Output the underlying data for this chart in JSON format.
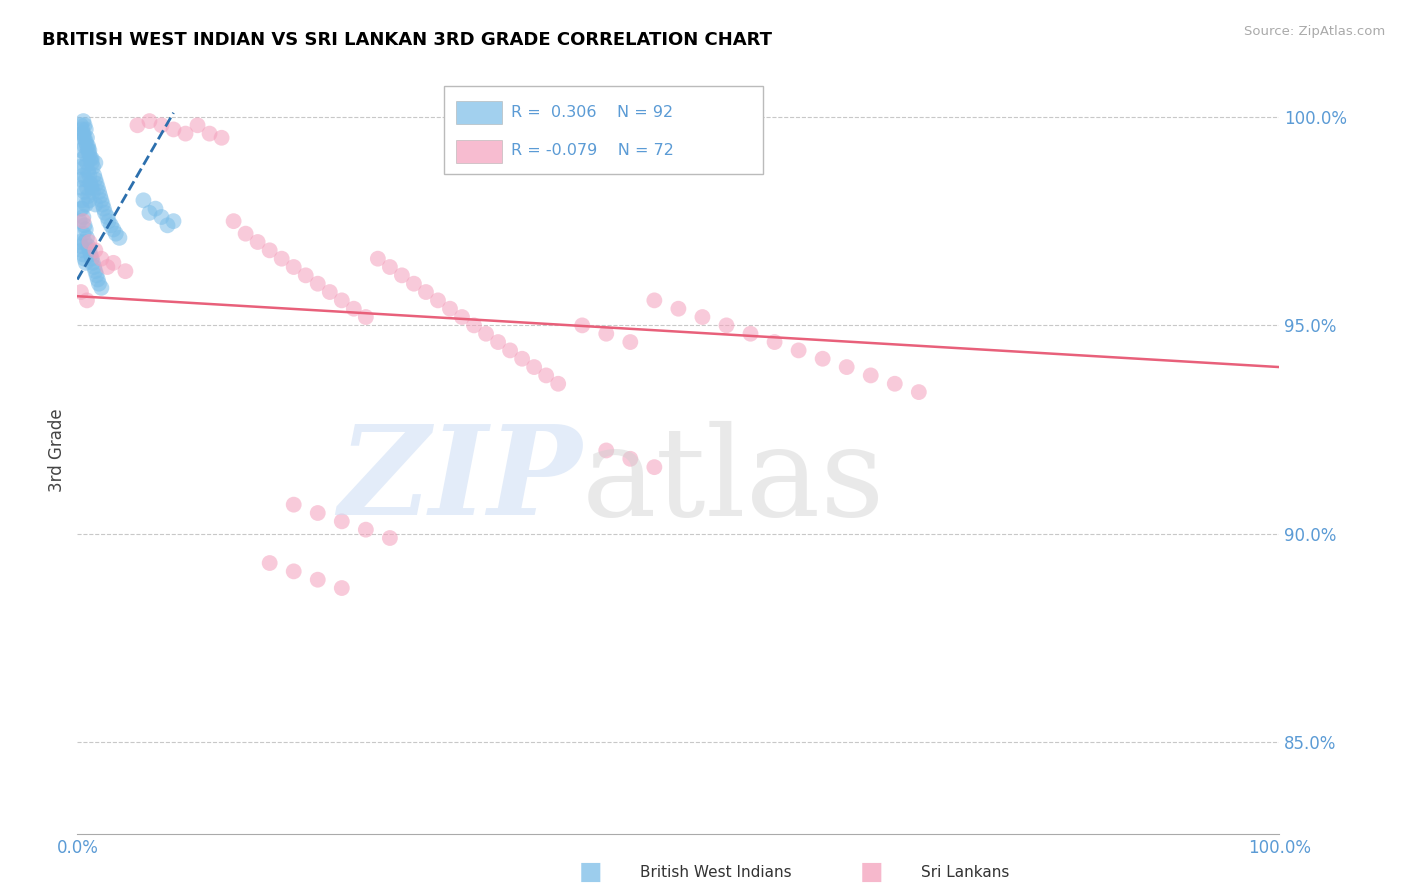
{
  "title": "BRITISH WEST INDIAN VS SRI LANKAN 3RD GRADE CORRELATION CHART",
  "source": "Source: ZipAtlas.com",
  "ylabel": "3rd Grade",
  "x_min": 0.0,
  "x_max": 1.0,
  "y_min": 0.828,
  "y_max": 1.012,
  "yticks": [
    0.85,
    0.9,
    0.95,
    1.0
  ],
  "ytick_labels": [
    "85.0%",
    "90.0%",
    "95.0%",
    "100.0%"
  ],
  "blue_color": "#7bbde8",
  "pink_color": "#f4a0bc",
  "blue_line_color": "#2c6fad",
  "pink_line_color": "#e8607a",
  "title_color": "#000000",
  "axis_color": "#5b9bd5",
  "grid_color": "#c8c8c8",
  "background_color": "#ffffff",
  "legend_R_blue": "0.306",
  "legend_N_blue": "92",
  "legend_R_pink": "-0.079",
  "legend_N_pink": "72",
  "blue_trend_x0": 0.0,
  "blue_trend_x1": 0.08,
  "blue_trend_y0": 0.961,
  "blue_trend_y1": 1.001,
  "pink_trend_x0": 0.0,
  "pink_trend_x1": 1.0,
  "pink_trend_y0": 0.957,
  "pink_trend_y1": 0.94,
  "bwi_x": [
    0.002,
    0.003,
    0.003,
    0.004,
    0.004,
    0.004,
    0.005,
    0.005,
    0.005,
    0.005,
    0.006,
    0.006,
    0.006,
    0.006,
    0.007,
    0.007,
    0.007,
    0.007,
    0.008,
    0.008,
    0.008,
    0.009,
    0.009,
    0.009,
    0.01,
    0.01,
    0.01,
    0.011,
    0.011,
    0.012,
    0.012,
    0.013,
    0.013,
    0.014,
    0.015,
    0.015,
    0.016,
    0.017,
    0.018,
    0.019,
    0.02,
    0.021,
    0.022,
    0.023,
    0.025,
    0.026,
    0.028,
    0.03,
    0.032,
    0.035,
    0.002,
    0.003,
    0.004,
    0.005,
    0.005,
    0.006,
    0.006,
    0.007,
    0.008,
    0.009,
    0.01,
    0.011,
    0.012,
    0.013,
    0.014,
    0.015,
    0.016,
    0.017,
    0.018,
    0.02,
    0.003,
    0.004,
    0.005,
    0.006,
    0.007,
    0.008,
    0.009,
    0.01,
    0.012,
    0.015,
    0.002,
    0.003,
    0.004,
    0.005,
    0.006,
    0.007,
    0.055,
    0.065,
    0.07,
    0.08,
    0.06,
    0.075
  ],
  "bwi_y": [
    0.988,
    0.992,
    0.985,
    0.996,
    0.983,
    0.978,
    0.999,
    0.995,
    0.99,
    0.986,
    0.998,
    0.993,
    0.988,
    0.982,
    0.997,
    0.991,
    0.985,
    0.979,
    0.995,
    0.989,
    0.983,
    0.993,
    0.987,
    0.981,
    0.992,
    0.986,
    0.98,
    0.99,
    0.984,
    0.989,
    0.983,
    0.988,
    0.982,
    0.986,
    0.985,
    0.979,
    0.984,
    0.983,
    0.982,
    0.981,
    0.98,
    0.979,
    0.978,
    0.977,
    0.976,
    0.975,
    0.974,
    0.973,
    0.972,
    0.971,
    0.975,
    0.978,
    0.98,
    0.976,
    0.972,
    0.974,
    0.97,
    0.973,
    0.971,
    0.969,
    0.968,
    0.967,
    0.966,
    0.965,
    0.964,
    0.963,
    0.962,
    0.961,
    0.96,
    0.959,
    0.998,
    0.997,
    0.996,
    0.995,
    0.994,
    0.993,
    0.992,
    0.991,
    0.99,
    0.989,
    0.97,
    0.969,
    0.968,
    0.967,
    0.966,
    0.965,
    0.98,
    0.978,
    0.976,
    0.975,
    0.977,
    0.974
  ],
  "slk_x": [
    0.005,
    0.01,
    0.015,
    0.02,
    0.025,
    0.03,
    0.04,
    0.05,
    0.06,
    0.07,
    0.08,
    0.09,
    0.1,
    0.11,
    0.12,
    0.13,
    0.14,
    0.15,
    0.16,
    0.17,
    0.18,
    0.19,
    0.2,
    0.21,
    0.22,
    0.23,
    0.24,
    0.25,
    0.26,
    0.27,
    0.28,
    0.29,
    0.3,
    0.31,
    0.32,
    0.33,
    0.34,
    0.35,
    0.36,
    0.37,
    0.38,
    0.39,
    0.4,
    0.42,
    0.44,
    0.46,
    0.48,
    0.5,
    0.52,
    0.54,
    0.56,
    0.58,
    0.6,
    0.62,
    0.64,
    0.66,
    0.68,
    0.7,
    0.003,
    0.008,
    0.44,
    0.46,
    0.48,
    0.18,
    0.2,
    0.22,
    0.24,
    0.26,
    0.16,
    0.18,
    0.2,
    0.22
  ],
  "slk_y": [
    0.975,
    0.97,
    0.968,
    0.966,
    0.964,
    0.965,
    0.963,
    0.998,
    0.999,
    0.998,
    0.997,
    0.996,
    0.998,
    0.996,
    0.995,
    0.975,
    0.972,
    0.97,
    0.968,
    0.966,
    0.964,
    0.962,
    0.96,
    0.958,
    0.956,
    0.954,
    0.952,
    0.966,
    0.964,
    0.962,
    0.96,
    0.958,
    0.956,
    0.954,
    0.952,
    0.95,
    0.948,
    0.946,
    0.944,
    0.942,
    0.94,
    0.938,
    0.936,
    0.95,
    0.948,
    0.946,
    0.956,
    0.954,
    0.952,
    0.95,
    0.948,
    0.946,
    0.944,
    0.942,
    0.94,
    0.938,
    0.936,
    0.934,
    0.958,
    0.956,
    0.92,
    0.918,
    0.916,
    0.907,
    0.905,
    0.903,
    0.901,
    0.899,
    0.893,
    0.891,
    0.889,
    0.887
  ]
}
